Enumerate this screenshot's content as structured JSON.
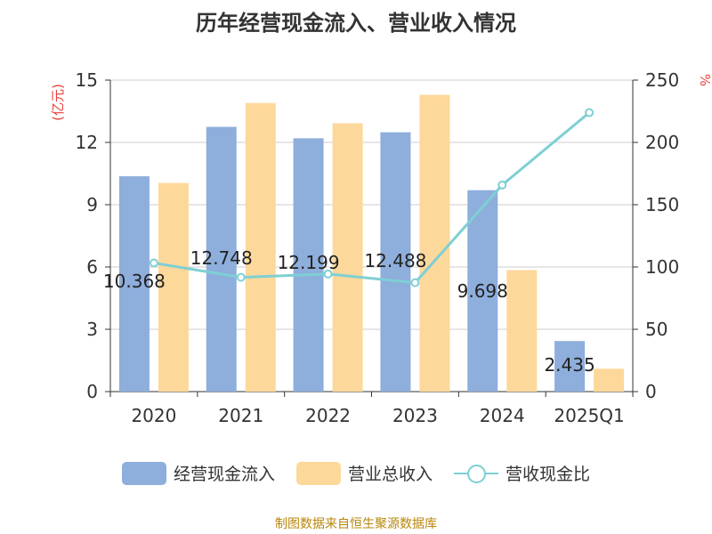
{
  "title": "历年经营现金流入、营业收入情况",
  "source": "制图数据来自恒生聚源数据库",
  "colors": {
    "series1": "#8eaedc",
    "series2": "#fdd89b",
    "series3": "#7ecfd4",
    "axis_label": "#e8413c"
  },
  "chart_data": {
    "type": "bar",
    "categories": [
      "2020",
      "2021",
      "2022",
      "2023",
      "2024",
      "2025Q1"
    ],
    "y_left": {
      "label": "(亿元)",
      "ticks": [
        0,
        3,
        6,
        9,
        12,
        15
      ],
      "range": [
        0,
        15
      ]
    },
    "y_right": {
      "label": "%",
      "ticks": [
        0,
        50,
        100,
        150,
        200,
        250
      ],
      "range": [
        0,
        250
      ]
    },
    "series": [
      {
        "name": "经营现金流入",
        "type": "bar",
        "axis": "left",
        "values": [
          10.368,
          12.748,
          12.199,
          12.488,
          9.698,
          2.435
        ],
        "labels": [
          "10.368",
          "12.748",
          "12.199",
          "12.488",
          "9.698",
          "2.435"
        ]
      },
      {
        "name": "营业总收入",
        "type": "bar",
        "axis": "left",
        "values": [
          10.05,
          13.9,
          12.92,
          14.29,
          5.85,
          1.1
        ]
      },
      {
        "name": "营收现金比",
        "type": "line",
        "axis": "right",
        "values": [
          103.2,
          91.7,
          94.4,
          87.4,
          165.8,
          223.9
        ]
      }
    ],
    "grid": true,
    "legend_position": "bottom"
  }
}
